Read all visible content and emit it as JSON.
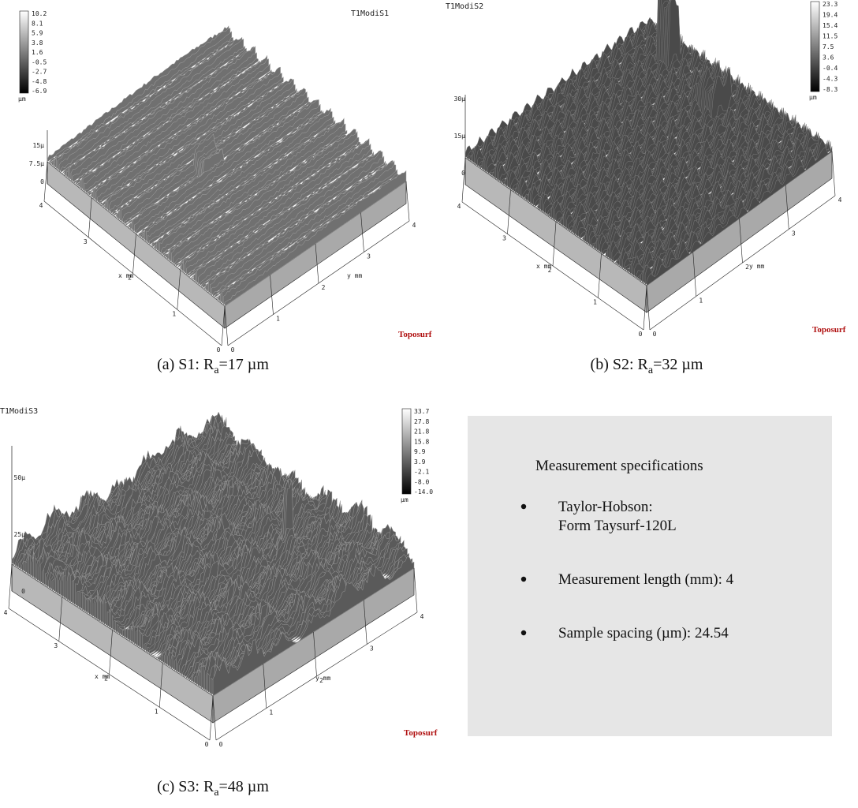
{
  "panels": [
    {
      "title": "T1ModiS1",
      "colorbar": {
        "ticks": [
          "10.2",
          "8.1",
          "5.9",
          "3.8",
          "1.6",
          "-0.5",
          "-2.7",
          "-4.8",
          "-6.9"
        ],
        "unit": "µm"
      },
      "z_ticks": [
        "15µ",
        "7.5µ",
        "0"
      ],
      "x_ticks": [
        "0",
        "1",
        "2",
        "3",
        "4"
      ],
      "y_ticks": [
        "0",
        "1",
        "2",
        "3",
        "4"
      ],
      "x_label": "x mm",
      "y_label": "y mm",
      "brand": "Toposurf",
      "caption": {
        "text": "(a) S1: R",
        "subscript": "a",
        "suffix": "=17 µm"
      }
    },
    {
      "title": "T1ModiS2",
      "colorbar": {
        "ticks": [
          "23.3",
          "19.4",
          "15.4",
          "11.5",
          "7.5",
          "3.6",
          "-0.4",
          "-4.3",
          "-8.3"
        ],
        "unit": "µm"
      },
      "z_ticks": [
        "30µ",
        "15µ",
        "0"
      ],
      "x_ticks": [
        "0",
        "1",
        "2",
        "3",
        "4"
      ],
      "y_ticks": [
        "0",
        "1",
        "2",
        "3",
        "4"
      ],
      "x_label": "x mm",
      "y_label": "y mm",
      "brand": "Toposurf",
      "caption": {
        "text": "(b) S2: R",
        "subscript": "a",
        "suffix": "=32 µm"
      }
    },
    {
      "title": "T1ModiS3",
      "colorbar": {
        "ticks": [
          "33.7",
          "27.8",
          "21.8",
          "15.8",
          "9.9",
          "3.9",
          "-2.1",
          "-8.0",
          "-14.0"
        ],
        "unit": "µm"
      },
      "z_ticks": [
        "50µ",
        "25µ",
        "0"
      ],
      "x_ticks": [
        "0",
        "1",
        "2",
        "3",
        "4"
      ],
      "y_ticks": [
        "0",
        "1",
        "2",
        "3",
        "4"
      ],
      "x_label": "x mm",
      "y_label": "y mm",
      "brand": "Toposurf",
      "caption": {
        "text": "(c) S3: R",
        "subscript": "a",
        "suffix": "=48 µm"
      }
    }
  ],
  "specs": {
    "title": "Measurement specifications",
    "items": [
      [
        "Taylor-Hobson:",
        "Form Taysurf-120L"
      ],
      [
        "Measurement length (mm): 4"
      ],
      [
        "Sample spacing (µm): 24.54"
      ]
    ]
  }
}
